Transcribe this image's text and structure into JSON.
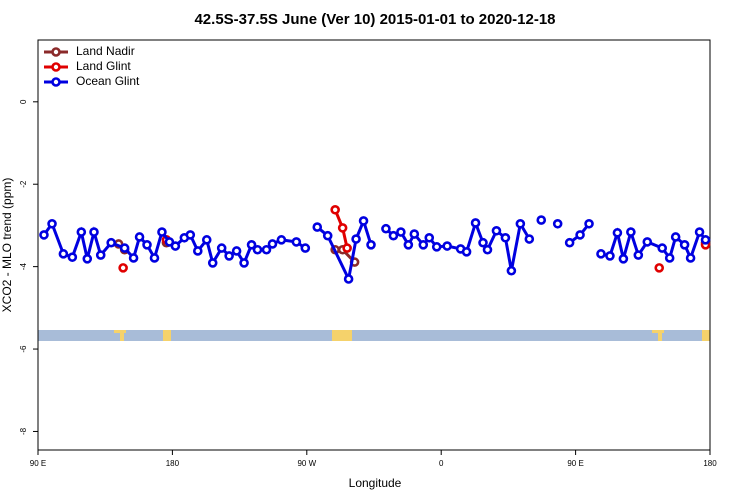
{
  "chart_data": {
    "type": "line",
    "title": "42.5S-37.5S June (Ver 10)   2015-01-01 to 2020-12-18",
    "x_label": "Longitude",
    "y_label": "XCO2 - MLO trend (ppm)",
    "xlim": [
      90,
      540
    ],
    "ylim": [
      -8.45,
      1.5
    ],
    "xticks": [
      {
        "value": 90,
        "label": "90 E"
      },
      {
        "value": 180,
        "label": "180"
      },
      {
        "value": 270,
        "label": "90 W"
      },
      {
        "value": 360,
        "label": "0"
      },
      {
        "value": 450,
        "label": "90 E"
      },
      {
        "value": 540,
        "label": "180"
      }
    ],
    "yticks": [
      0,
      -2,
      -4,
      -6,
      -8
    ],
    "legend": "top-left",
    "series": [
      {
        "name": "Land Nadir",
        "color": "#8b2a2a",
        "x": [
          144,
          148,
          null,
          176,
          null,
          289,
          294,
          302,
          null,
          537
        ],
        "values": [
          -3.45,
          -3.59,
          null,
          -3.42,
          null,
          -3.59,
          -3.59,
          -3.89,
          null,
          -3.42
        ]
      },
      {
        "name": "Land Glint",
        "color": "#e00000",
        "x": [
          147,
          null,
          176,
          null,
          289,
          294,
          297,
          null,
          506,
          null,
          537
        ],
        "values": [
          -4.03,
          null,
          -3.35,
          null,
          -2.62,
          -3.06,
          -3.55,
          null,
          -4.03,
          null,
          -3.47
        ]
      },
      {
        "name": "Ocean Glint",
        "color": "#0000e0",
        "x": [
          94,
          99.4,
          107,
          113,
          119,
          123,
          127.5,
          132,
          139,
          148,
          154,
          158,
          163,
          168,
          173,
          178,
          182,
          188,
          192,
          197,
          203,
          207,
          213,
          218,
          223,
          228,
          233,
          237,
          243,
          247,
          253,
          263,
          269,
          null,
          277,
          284,
          298,
          303,
          308,
          313,
          null,
          323,
          328,
          333,
          338,
          342,
          348,
          352,
          357,
          364,
          373,
          377,
          383,
          388,
          391,
          397,
          403,
          407,
          413,
          419,
          null,
          427,
          null,
          438,
          null,
          446,
          453,
          459,
          null,
          467,
          473,
          478,
          482,
          487,
          492,
          498,
          508,
          513,
          517,
          523,
          527,
          533,
          537
        ],
        "values": [
          -3.23,
          -2.96,
          -3.69,
          -3.77,
          -3.16,
          -3.81,
          -3.16,
          -3.72,
          -3.42,
          -3.55,
          -3.79,
          -3.28,
          -3.47,
          -3.79,
          -3.16,
          -3.4,
          -3.5,
          -3.3,
          -3.23,
          -3.62,
          -3.35,
          -3.91,
          -3.55,
          -3.74,
          -3.62,
          -3.91,
          -3.47,
          -3.59,
          -3.59,
          -3.45,
          -3.35,
          -3.4,
          -3.55,
          null,
          -3.04,
          -3.25,
          -4.3,
          -3.33,
          -2.89,
          -3.47,
          null,
          -3.08,
          -3.25,
          -3.16,
          -3.47,
          -3.21,
          -3.47,
          -3.3,
          -3.52,
          -3.5,
          -3.57,
          -3.64,
          -2.94,
          -3.42,
          -3.59,
          -3.13,
          -3.3,
          -4.1,
          -2.96,
          -3.33,
          null,
          -2.87,
          null,
          -2.96,
          null,
          -3.42,
          -3.23,
          -2.96,
          null,
          -3.69,
          -3.74,
          -3.18,
          -3.81,
          -3.16,
          -3.72,
          -3.4,
          -3.55,
          -3.79,
          -3.28,
          -3.47,
          -3.79,
          -3.16,
          -3.35
        ]
      }
    ]
  }
}
